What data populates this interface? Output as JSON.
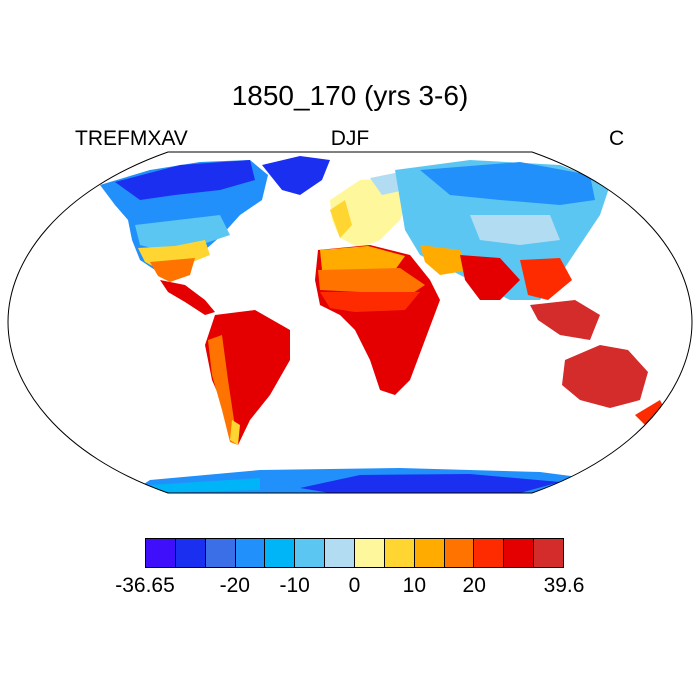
{
  "title": "1850_170 (yrs 3-6)",
  "variable": "TREFMXAV",
  "season": "DJF",
  "units": "C",
  "colorbar": {
    "colors": [
      "#3f0ffb",
      "#1a2ff0",
      "#3a6fe8",
      "#2290fa",
      "#00b4f8",
      "#5cc6f2",
      "#b2dcf2",
      "#fff79c",
      "#ffd532",
      "#ffab00",
      "#ff7400",
      "#ff2b00",
      "#e40000",
      "#d42b2b"
    ],
    "tick_labels": [
      "-36.65",
      "-20",
      "-10",
      "0",
      "10",
      "20",
      "39.6"
    ]
  },
  "colors": {
    "ocean": "#ffffff",
    "coast": "#000000"
  }
}
